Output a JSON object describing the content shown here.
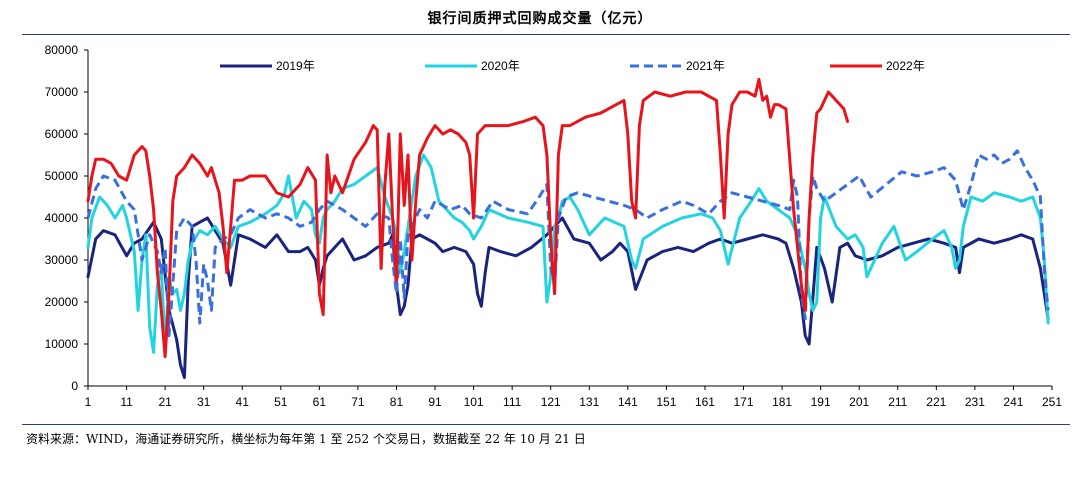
{
  "page": {
    "title": "银行间质押式回购成交量（亿元）"
  },
  "source_note": "资料来源：WIND，海通证券研究所，横坐标为每年第 1 至 252 个交易日，数据截至 22 年 10 月 21 日",
  "chart_data": {
    "type": "line",
    "title": "银行间质押式回购成交量（亿元）",
    "xlabel": "",
    "ylabel": "",
    "xlim": [
      1,
      251
    ],
    "ylim": [
      0,
      80000
    ],
    "y_ticks": [
      "0",
      "10000",
      "20000",
      "30000",
      "40000",
      "50000",
      "60000",
      "70000",
      "80000"
    ],
    "y_tick_values": [
      0,
      10000,
      20000,
      30000,
      40000,
      50000,
      60000,
      70000,
      80000
    ],
    "x_ticks": [
      "1",
      "11",
      "21",
      "31",
      "41",
      "51",
      "61",
      "71",
      "81",
      "91",
      "101",
      "111",
      "121",
      "131",
      "141",
      "151",
      "161",
      "171",
      "181",
      "191",
      "201",
      "211",
      "221",
      "231",
      "241",
      "251"
    ],
    "x_tick_values": [
      1,
      11,
      21,
      31,
      41,
      51,
      61,
      71,
      81,
      91,
      101,
      111,
      121,
      131,
      141,
      151,
      161,
      171,
      181,
      191,
      201,
      211,
      221,
      231,
      241,
      251
    ],
    "legend_position": "top",
    "series": [
      {
        "name": "2019年",
        "color": "#1a237e",
        "dash": "solid",
        "x": [
          1,
          3,
          5,
          8,
          11,
          13,
          15,
          18,
          20,
          22,
          24,
          25,
          26,
          27,
          28,
          30,
          32,
          34,
          36,
          38,
          40,
          43,
          47,
          50,
          53,
          56,
          58,
          60,
          61,
          62,
          63,
          65,
          67,
          70,
          73,
          76,
          79,
          80,
          81,
          82,
          83,
          84,
          85,
          87,
          89,
          91,
          93,
          96,
          99,
          101,
          102,
          103,
          104,
          105,
          108,
          112,
          116,
          120,
          122,
          124,
          127,
          131,
          134,
          137,
          139,
          141,
          143,
          146,
          150,
          154,
          158,
          162,
          165,
          168,
          172,
          176,
          180,
          182,
          184,
          186,
          187,
          188,
          189,
          190,
          192,
          194,
          196,
          198,
          200,
          203,
          207,
          211,
          215,
          219,
          223,
          226,
          227,
          228,
          232,
          236,
          240,
          243,
          246,
          248,
          249,
          250
        ],
        "y": [
          26000,
          35000,
          37000,
          36000,
          31000,
          34000,
          35000,
          39000,
          35000,
          18000,
          11000,
          5000,
          2000,
          25000,
          38000,
          39000,
          40000,
          37000,
          34000,
          24000,
          36000,
          35000,
          33000,
          36000,
          32000,
          32000,
          33000,
          30000,
          24000,
          28000,
          31000,
          33000,
          35000,
          30000,
          31000,
          33000,
          34000,
          36000,
          24000,
          17000,
          19000,
          24000,
          35000,
          36000,
          35000,
          34000,
          32000,
          33000,
          32000,
          29000,
          22000,
          19000,
          27000,
          33000,
          32000,
          31000,
          33000,
          36000,
          38000,
          40000,
          35000,
          34000,
          30000,
          32000,
          34000,
          32000,
          23000,
          30000,
          32000,
          33000,
          32000,
          34000,
          35000,
          34000,
          35000,
          36000,
          35000,
          34000,
          28000,
          20000,
          12000,
          10000,
          21000,
          33000,
          28000,
          20000,
          33000,
          34000,
          31000,
          30000,
          31000,
          33000,
          34000,
          35000,
          34000,
          33000,
          27000,
          33000,
          35000,
          34000,
          35000,
          36000,
          35000,
          28000,
          22000,
          16000
        ]
      },
      {
        "name": "2020年",
        "color": "#22d3e0",
        "dash": "solid",
        "x": [
          1,
          2,
          4,
          6,
          8,
          10,
          11,
          13,
          14,
          15,
          16,
          17,
          18,
          19,
          20,
          21,
          22,
          23,
          24,
          25,
          26,
          27,
          28,
          30,
          32,
          34,
          36,
          38,
          40,
          43,
          47,
          50,
          52,
          53,
          55,
          57,
          59,
          60,
          61,
          62,
          63,
          65,
          67,
          70,
          73,
          76,
          78,
          80,
          81,
          82,
          83,
          85,
          86,
          88,
          90,
          92,
          94,
          96,
          98,
          100,
          101,
          103,
          105,
          110,
          115,
          119,
          120,
          121,
          122,
          123,
          124,
          126,
          128,
          131,
          135,
          140,
          142,
          143,
          145,
          150,
          155,
          160,
          163,
          165,
          167,
          170,
          173,
          175,
          177,
          180,
          183,
          185,
          187,
          188,
          189,
          190,
          191,
          192,
          195,
          198,
          200,
          202,
          203,
          205,
          207,
          210,
          213,
          216,
          220,
          223,
          225,
          226,
          227,
          228,
          230,
          233,
          236,
          240,
          243,
          246,
          248,
          249,
          250
        ],
        "y": [
          33000,
          40000,
          45000,
          43000,
          40000,
          43000,
          40000,
          32000,
          18000,
          30000,
          36000,
          14000,
          8000,
          24000,
          28000,
          9000,
          26000,
          22000,
          23000,
          18000,
          22000,
          30000,
          34000,
          37000,
          36000,
          38000,
          35000,
          33000,
          38000,
          39000,
          41000,
          43000,
          46000,
          50000,
          40000,
          44000,
          42000,
          36000,
          34000,
          40000,
          42000,
          44000,
          47000,
          48000,
          50000,
          52000,
          45000,
          40000,
          36000,
          27000,
          32000,
          44000,
          50000,
          55000,
          52000,
          44000,
          42000,
          40000,
          39000,
          37000,
          35000,
          38000,
          42000,
          40000,
          39000,
          38000,
          20000,
          26000,
          38000,
          40000,
          44000,
          45000,
          42000,
          36000,
          40000,
          38000,
          30000,
          28000,
          35000,
          38000,
          40000,
          41000,
          40000,
          37000,
          29000,
          40000,
          44000,
          47000,
          44000,
          42000,
          40000,
          36000,
          28000,
          22000,
          18000,
          20000,
          40000,
          45000,
          38000,
          35000,
          36000,
          33000,
          26000,
          30000,
          34000,
          38000,
          30000,
          32000,
          35000,
          37000,
          33000,
          28000,
          30000,
          38000,
          45000,
          44000,
          46000,
          45000,
          44000,
          45000,
          40000,
          30000,
          15000
        ]
      },
      {
        "name": "2021年",
        "color": "#3a6fe0",
        "dash": "dashed",
        "x": [
          1,
          3,
          5,
          8,
          11,
          13,
          15,
          17,
          19,
          20,
          21,
          22,
          23,
          24,
          26,
          28,
          29,
          30,
          31,
          32,
          33,
          34,
          36,
          38,
          40,
          43,
          47,
          50,
          53,
          56,
          59,
          61,
          63,
          65,
          67,
          70,
          73,
          76,
          79,
          80,
          81,
          82,
          83,
          84,
          85,
          87,
          89,
          91,
          93,
          95,
          98,
          100,
          103,
          106,
          110,
          115,
          118,
          120,
          121,
          122,
          123,
          125,
          128,
          132,
          136,
          140,
          143,
          146,
          150,
          155,
          158,
          162,
          165,
          168,
          172,
          176,
          180,
          183,
          184,
          185,
          186,
          187,
          188,
          189,
          190,
          192,
          195,
          198,
          201,
          204,
          208,
          212,
          216,
          220,
          223,
          226,
          228,
          230,
          232,
          234,
          236,
          238,
          240,
          242,
          244,
          246,
          248,
          249,
          250
        ],
        "y": [
          40000,
          47000,
          50000,
          49000,
          44000,
          42000,
          30000,
          36000,
          32000,
          27000,
          33000,
          12000,
          24000,
          37000,
          40000,
          38000,
          30000,
          15000,
          29000,
          25000,
          18000,
          33000,
          35000,
          36000,
          40000,
          42000,
          40000,
          41000,
          40000,
          38000,
          39000,
          42000,
          44000,
          43000,
          42000,
          40000,
          38000,
          41000,
          40000,
          30000,
          22000,
          35000,
          21000,
          36000,
          38000,
          42000,
          40000,
          44000,
          43000,
          42000,
          43000,
          41000,
          40000,
          44000,
          42000,
          41000,
          45000,
          48000,
          28000,
          24000,
          40000,
          45000,
          46000,
          45000,
          44000,
          43000,
          42000,
          40000,
          42000,
          44000,
          43000,
          41000,
          44000,
          46000,
          45000,
          44000,
          43000,
          42000,
          49000,
          45000,
          22000,
          16000,
          40000,
          50000,
          47000,
          44000,
          46000,
          48000,
          50000,
          45000,
          48000,
          51000,
          50000,
          51000,
          52000,
          49000,
          42000,
          48000,
          55000,
          54000,
          55000,
          53000,
          54000,
          56000,
          52000,
          49000,
          45000,
          28000,
          18000
        ]
      },
      {
        "name": "2022年",
        "color": "#e8141c",
        "dash": "solid",
        "x": [
          1,
          2,
          3,
          5,
          7,
          9,
          11,
          13,
          15,
          16,
          17,
          18,
          19,
          20,
          21,
          22,
          23,
          24,
          26,
          28,
          30,
          32,
          33,
          35,
          36,
          37,
          38,
          39,
          41,
          43,
          47,
          50,
          53,
          56,
          58,
          60,
          61,
          62,
          63,
          64,
          65,
          67,
          70,
          73,
          75,
          76,
          77,
          78,
          79,
          80,
          81,
          82,
          83,
          84,
          85,
          86,
          87,
          89,
          91,
          93,
          95,
          97,
          99,
          100,
          101,
          102,
          104,
          106,
          110,
          114,
          117,
          119,
          120,
          121,
          122,
          123,
          124,
          126,
          130,
          134,
          138,
          140,
          141,
          142,
          143,
          144,
          145,
          148,
          152,
          156,
          160,
          164,
          165,
          166,
          167,
          168,
          170,
          172,
          174,
          175,
          176,
          177,
          178,
          179,
          180,
          182,
          184,
          186,
          187,
          188,
          189,
          190,
          191,
          193,
          195,
          197,
          198
        ],
        "y": [
          44000,
          50000,
          54000,
          54000,
          53000,
          50000,
          49000,
          55000,
          57000,
          56000,
          50000,
          42000,
          27000,
          18000,
          7000,
          22000,
          44000,
          50000,
          52000,
          55000,
          53000,
          50000,
          52000,
          46000,
          38000,
          27000,
          38000,
          49000,
          49000,
          50000,
          50000,
          46000,
          45000,
          48000,
          52000,
          49000,
          22000,
          17000,
          55000,
          46000,
          50000,
          46000,
          54000,
          58000,
          62000,
          61000,
          28000,
          48000,
          60000,
          40000,
          25000,
          60000,
          43000,
          55000,
          30000,
          44000,
          55000,
          59000,
          62000,
          60000,
          61000,
          60000,
          58000,
          55000,
          40000,
          60000,
          62000,
          62000,
          62000,
          63000,
          64000,
          62000,
          55000,
          35000,
          22000,
          55000,
          62000,
          62000,
          64000,
          65000,
          67000,
          68000,
          60000,
          44000,
          40000,
          62000,
          68000,
          70000,
          69000,
          70000,
          70000,
          68000,
          55000,
          40000,
          60000,
          67000,
          70000,
          70000,
          69000,
          73000,
          68000,
          69000,
          64000,
          67000,
          67000,
          66000,
          42000,
          24000,
          18000,
          40000,
          55000,
          65000,
          66000,
          70000,
          68000,
          66000,
          63000
        ]
      }
    ]
  }
}
